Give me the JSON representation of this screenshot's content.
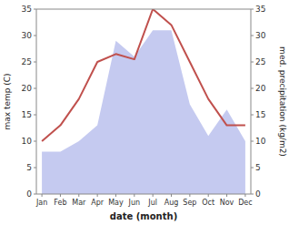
{
  "chart_data": {
    "type": "line",
    "xlabel": "date (month)",
    "ylabel": "max temp (C)",
    "y2label": "med. precipitation (kg/m2)",
    "categories": [
      "Jan",
      "Feb",
      "Mar",
      "Apr",
      "May",
      "Jun",
      "Jul",
      "Aug",
      "Sep",
      "Oct",
      "Nov",
      "Dec"
    ],
    "series": [
      {
        "type": "line",
        "color": "#c0504d",
        "values": [
          10,
          13,
          18,
          25,
          26.5,
          25.5,
          35,
          32,
          25,
          18,
          13,
          13
        ]
      },
      {
        "type": "area",
        "color": "#c5caf0",
        "axis": "y2",
        "values": [
          8,
          8,
          10,
          13,
          29,
          26,
          31,
          31,
          17,
          11,
          16,
          10
        ]
      }
    ],
    "ylim": [
      0,
      35
    ],
    "yticks": [
      0,
      5,
      10,
      15,
      20,
      25,
      30,
      35
    ],
    "y2lim": [
      0,
      35
    ],
    "y2ticks": [
      0,
      5,
      10,
      15,
      20,
      25,
      30,
      35
    ],
    "grid": false
  }
}
